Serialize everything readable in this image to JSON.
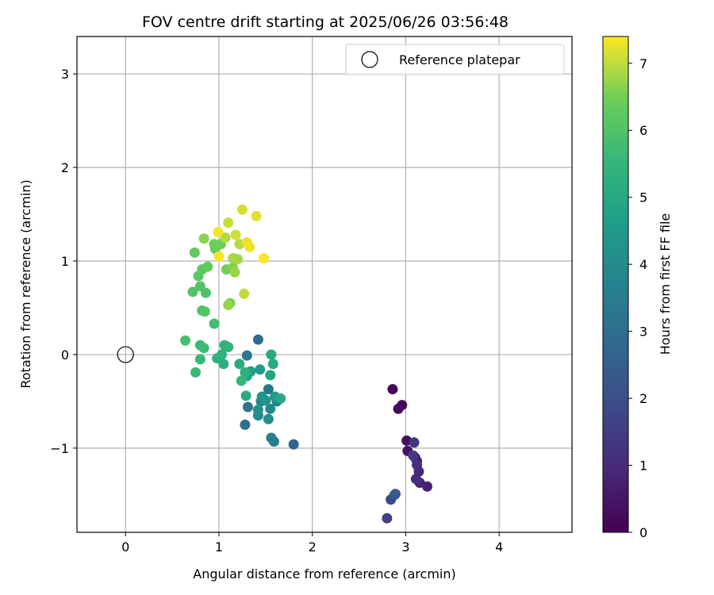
{
  "chart_data": {
    "type": "scatter",
    "title": "FOV centre drift starting at 2025/06/26 03:56:48",
    "xlabel": "Angular distance from reference (arcmin)",
    "ylabel": "Rotation from reference (arcmin)",
    "xlim": [
      -0.52,
      4.78
    ],
    "ylim": [
      -1.9,
      3.4
    ],
    "x_ticks": [
      0,
      1,
      2,
      3,
      4
    ],
    "x_tick_labels": [
      "0",
      "1",
      "2",
      "3",
      "4"
    ],
    "y_ticks": [
      -1,
      0,
      1,
      2,
      3
    ],
    "y_tick_labels": [
      "−1",
      "0",
      "1",
      "2",
      "3"
    ],
    "grid": true,
    "legend": {
      "position": "top-right",
      "entries": [
        "Reference platepar"
      ]
    },
    "reference_point": {
      "x": 0,
      "y": 0
    },
    "colorbar": {
      "label": "Hours from first FF file",
      "colormap": "viridis",
      "range": [
        0,
        7.4
      ],
      "ticks": [
        0,
        1,
        2,
        3,
        4,
        5,
        6,
        7
      ],
      "tick_labels": [
        "0",
        "1",
        "2",
        "3",
        "4",
        "5",
        "6",
        "7"
      ]
    },
    "points": [
      {
        "x": 2.86,
        "y": -0.37,
        "t": 0.05
      },
      {
        "x": 2.96,
        "y": -0.54,
        "t": 0.15
      },
      {
        "x": 2.92,
        "y": -0.58,
        "t": 0.25
      },
      {
        "x": 3.01,
        "y": -0.92,
        "t": 0.35
      },
      {
        "x": 3.02,
        "y": -1.03,
        "t": 0.45
      },
      {
        "x": 3.1,
        "y": -1.1,
        "t": 0.55
      },
      {
        "x": 3.12,
        "y": -1.14,
        "t": 0.65
      },
      {
        "x": 3.23,
        "y": -1.41,
        "t": 0.75
      },
      {
        "x": 3.15,
        "y": -1.37,
        "t": 0.85
      },
      {
        "x": 3.14,
        "y": -1.25,
        "t": 0.95
      },
      {
        "x": 3.11,
        "y": -1.33,
        "t": 1.05
      },
      {
        "x": 3.12,
        "y": -1.18,
        "t": 1.15
      },
      {
        "x": 3.09,
        "y": -0.94,
        "t": 1.3
      },
      {
        "x": 3.08,
        "y": -1.08,
        "t": 1.45
      },
      {
        "x": 2.8,
        "y": -1.75,
        "t": 1.6
      },
      {
        "x": 2.84,
        "y": -1.55,
        "t": 1.8
      },
      {
        "x": 2.88,
        "y": -1.5,
        "t": 2.0
      },
      {
        "x": 2.89,
        "y": -1.49,
        "t": 2.4
      },
      {
        "x": 1.8,
        "y": -0.96,
        "t": 2.7
      },
      {
        "x": 1.42,
        "y": 0.16,
        "t": 2.9
      },
      {
        "x": 1.28,
        "y": -0.75,
        "t": 3.05
      },
      {
        "x": 1.31,
        "y": -0.56,
        "t": 3.15
      },
      {
        "x": 1.3,
        "y": -0.01,
        "t": 3.25
      },
      {
        "x": 1.53,
        "y": -0.37,
        "t": 3.35
      },
      {
        "x": 1.59,
        "y": -0.93,
        "t": 3.45
      },
      {
        "x": 1.56,
        "y": -0.89,
        "t": 3.55
      },
      {
        "x": 1.62,
        "y": -0.5,
        "t": 3.65
      },
      {
        "x": 1.45,
        "y": -0.5,
        "t": 3.75
      },
      {
        "x": 1.55,
        "y": -0.58,
        "t": 3.85
      },
      {
        "x": 1.42,
        "y": -0.65,
        "t": 3.95
      },
      {
        "x": 1.53,
        "y": -0.69,
        "t": 4.05
      },
      {
        "x": 1.42,
        "y": -0.59,
        "t": 4.15
      },
      {
        "x": 1.46,
        "y": -0.45,
        "t": 4.25
      },
      {
        "x": 1.5,
        "y": -0.49,
        "t": 4.35
      },
      {
        "x": 1.6,
        "y": -0.45,
        "t": 4.45
      },
      {
        "x": 1.44,
        "y": -0.16,
        "t": 4.55
      },
      {
        "x": 1.34,
        "y": -0.18,
        "t": 4.65
      },
      {
        "x": 1.3,
        "y": -0.23,
        "t": 4.75
      },
      {
        "x": 1.55,
        "y": -0.22,
        "t": 4.85
      },
      {
        "x": 1.66,
        "y": -0.47,
        "t": 4.95
      },
      {
        "x": 1.58,
        "y": -0.1,
        "t": 5.0
      },
      {
        "x": 1.56,
        "y": 0.0,
        "t": 5.05
      },
      {
        "x": 1.29,
        "y": -0.44,
        "t": 5.1
      },
      {
        "x": 1.22,
        "y": -0.1,
        "t": 5.15
      },
      {
        "x": 1.28,
        "y": -0.19,
        "t": 5.2
      },
      {
        "x": 1.05,
        "y": -0.1,
        "t": 5.25
      },
      {
        "x": 1.03,
        "y": 0.0,
        "t": 5.3
      },
      {
        "x": 0.98,
        "y": -0.04,
        "t": 5.35
      },
      {
        "x": 1.06,
        "y": 0.1,
        "t": 5.4
      },
      {
        "x": 1.1,
        "y": 0.08,
        "t": 5.45
      },
      {
        "x": 1.24,
        "y": -0.28,
        "t": 5.5
      },
      {
        "x": 0.8,
        "y": -0.05,
        "t": 5.55
      },
      {
        "x": 0.8,
        "y": 0.1,
        "t": 5.6
      },
      {
        "x": 0.75,
        "y": -0.19,
        "t": 5.65
      },
      {
        "x": 0.84,
        "y": 0.07,
        "t": 5.7
      },
      {
        "x": 0.95,
        "y": 0.33,
        "t": 5.75
      },
      {
        "x": 0.64,
        "y": 0.15,
        "t": 5.85
      },
      {
        "x": 0.82,
        "y": 0.47,
        "t": 5.9
      },
      {
        "x": 0.86,
        "y": 0.66,
        "t": 5.95
      },
      {
        "x": 0.72,
        "y": 0.67,
        "t": 6.0
      },
      {
        "x": 0.8,
        "y": 0.73,
        "t": 6.05
      },
      {
        "x": 0.85,
        "y": 0.46,
        "t": 6.1
      },
      {
        "x": 0.78,
        "y": 0.84,
        "t": 6.15
      },
      {
        "x": 0.82,
        "y": 0.91,
        "t": 6.2
      },
      {
        "x": 0.74,
        "y": 1.09,
        "t": 6.25
      },
      {
        "x": 0.88,
        "y": 0.94,
        "t": 6.3
      },
      {
        "x": 0.96,
        "y": 1.13,
        "t": 6.35
      },
      {
        "x": 0.95,
        "y": 1.18,
        "t": 6.4
      },
      {
        "x": 1.02,
        "y": 1.18,
        "t": 6.45
      },
      {
        "x": 1.08,
        "y": 0.91,
        "t": 6.5
      },
      {
        "x": 1.12,
        "y": 0.55,
        "t": 6.55
      },
      {
        "x": 1.15,
        "y": 0.93,
        "t": 6.6
      },
      {
        "x": 0.84,
        "y": 1.24,
        "t": 6.65
      },
      {
        "x": 1.1,
        "y": 0.53,
        "t": 6.7
      },
      {
        "x": 1.17,
        "y": 0.88,
        "t": 6.75
      },
      {
        "x": 1.2,
        "y": 1.02,
        "t": 6.8
      },
      {
        "x": 1.15,
        "y": 1.03,
        "t": 6.85
      },
      {
        "x": 1.07,
        "y": 1.25,
        "t": 6.9
      },
      {
        "x": 1.22,
        "y": 1.18,
        "t": 6.95
      },
      {
        "x": 1.27,
        "y": 0.65,
        "t": 7.0
      },
      {
        "x": 1.1,
        "y": 1.41,
        "t": 7.05
      },
      {
        "x": 1.18,
        "y": 1.28,
        "t": 7.1
      },
      {
        "x": 1.25,
        "y": 1.55,
        "t": 7.15
      },
      {
        "x": 1.4,
        "y": 1.48,
        "t": 7.2
      },
      {
        "x": 1.3,
        "y": 1.2,
        "t": 7.25
      },
      {
        "x": 1.33,
        "y": 1.15,
        "t": 7.3
      },
      {
        "x": 1.0,
        "y": 1.05,
        "t": 7.35
      },
      {
        "x": 0.99,
        "y": 1.31,
        "t": 7.35
      },
      {
        "x": 1.48,
        "y": 1.03,
        "t": 7.38
      }
    ]
  }
}
